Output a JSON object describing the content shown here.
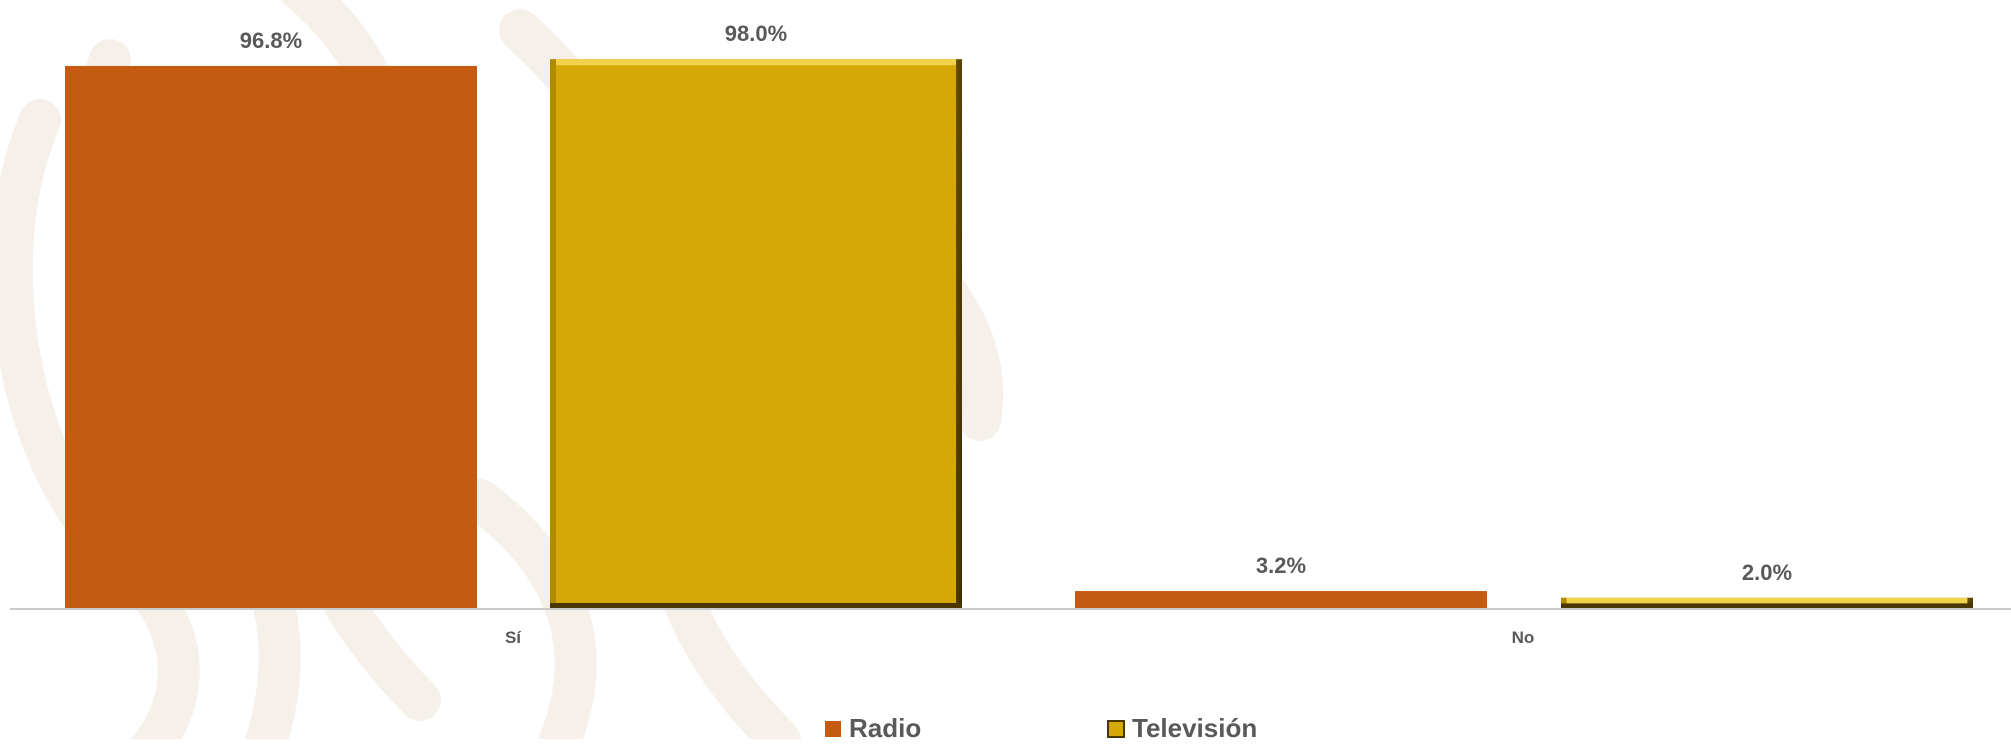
{
  "chart_data": {
    "type": "bar",
    "categories": [
      "Sí",
      "No"
    ],
    "series": [
      {
        "name": "Radio",
        "values": [
          96.8,
          3.2
        ],
        "labels": [
          "96.8%",
          "3.2%"
        ],
        "color": "#C55A11"
      },
      {
        "name": "Televisión",
        "values": [
          98.0,
          2.0
        ],
        "labels": [
          "98.0%",
          "2.0%"
        ],
        "color": "#D6A806"
      }
    ],
    "ylim": [
      0,
      100
    ],
    "grid": false,
    "legend_position": "bottom"
  }
}
